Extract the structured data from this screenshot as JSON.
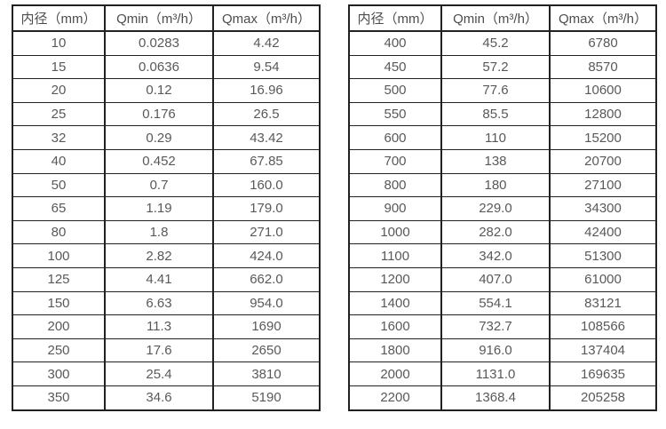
{
  "colors": {
    "background": "#ffffff",
    "table_border": "#212121",
    "header_text": "#4d4d4d",
    "cell_text": "#595959"
  },
  "chart_data": [
    {
      "type": "table",
      "name": "flow-rate-table-small-diameters",
      "headers": [
        "内径（mm）",
        "Qmin（m³/h）",
        "Qmax（m³/h）"
      ],
      "rows": [
        [
          "10",
          "0.0283",
          "4.42"
        ],
        [
          "15",
          "0.0636",
          "9.54"
        ],
        [
          "20",
          "0.12",
          "16.96"
        ],
        [
          "25",
          "0.176",
          "26.5"
        ],
        [
          "32",
          "0.29",
          "43.42"
        ],
        [
          "40",
          "0.452",
          "67.85"
        ],
        [
          "50",
          "0.7",
          "160.0"
        ],
        [
          "65",
          "1.19",
          "179.0"
        ],
        [
          "80",
          "1.8",
          "271.0"
        ],
        [
          "100",
          "2.82",
          "424.0"
        ],
        [
          "125",
          "4.41",
          "662.0"
        ],
        [
          "150",
          "6.63",
          "954.0"
        ],
        [
          "200",
          "11.3",
          "1690"
        ],
        [
          "250",
          "17.6",
          "2650"
        ],
        [
          "300",
          "25.4",
          "3810"
        ],
        [
          "350",
          "34.6",
          "5190"
        ]
      ]
    },
    {
      "type": "table",
      "name": "flow-rate-table-large-diameters",
      "headers": [
        "内径（mm）",
        "Qmin（m³/h）",
        "Qmax（m³/h）"
      ],
      "rows": [
        [
          "400",
          "45.2",
          "6780"
        ],
        [
          "450",
          "57.2",
          "8570"
        ],
        [
          "500",
          "77.6",
          "10600"
        ],
        [
          "550",
          "85.5",
          "12800"
        ],
        [
          "600",
          "110",
          "15200"
        ],
        [
          "700",
          "138",
          "20700"
        ],
        [
          "800",
          "180",
          "27100"
        ],
        [
          "900",
          "229.0",
          "34300"
        ],
        [
          "1000",
          "282.0",
          "42400"
        ],
        [
          "1100",
          "342.0",
          "51300"
        ],
        [
          "1200",
          "407.0",
          "61000"
        ],
        [
          "1400",
          "554.1",
          "83121"
        ],
        [
          "1600",
          "732.7",
          "108566"
        ],
        [
          "1800",
          "916.0",
          "137404"
        ],
        [
          "2000",
          "1131.0",
          "169635"
        ],
        [
          "2200",
          "1368.4",
          "205258"
        ]
      ]
    }
  ]
}
